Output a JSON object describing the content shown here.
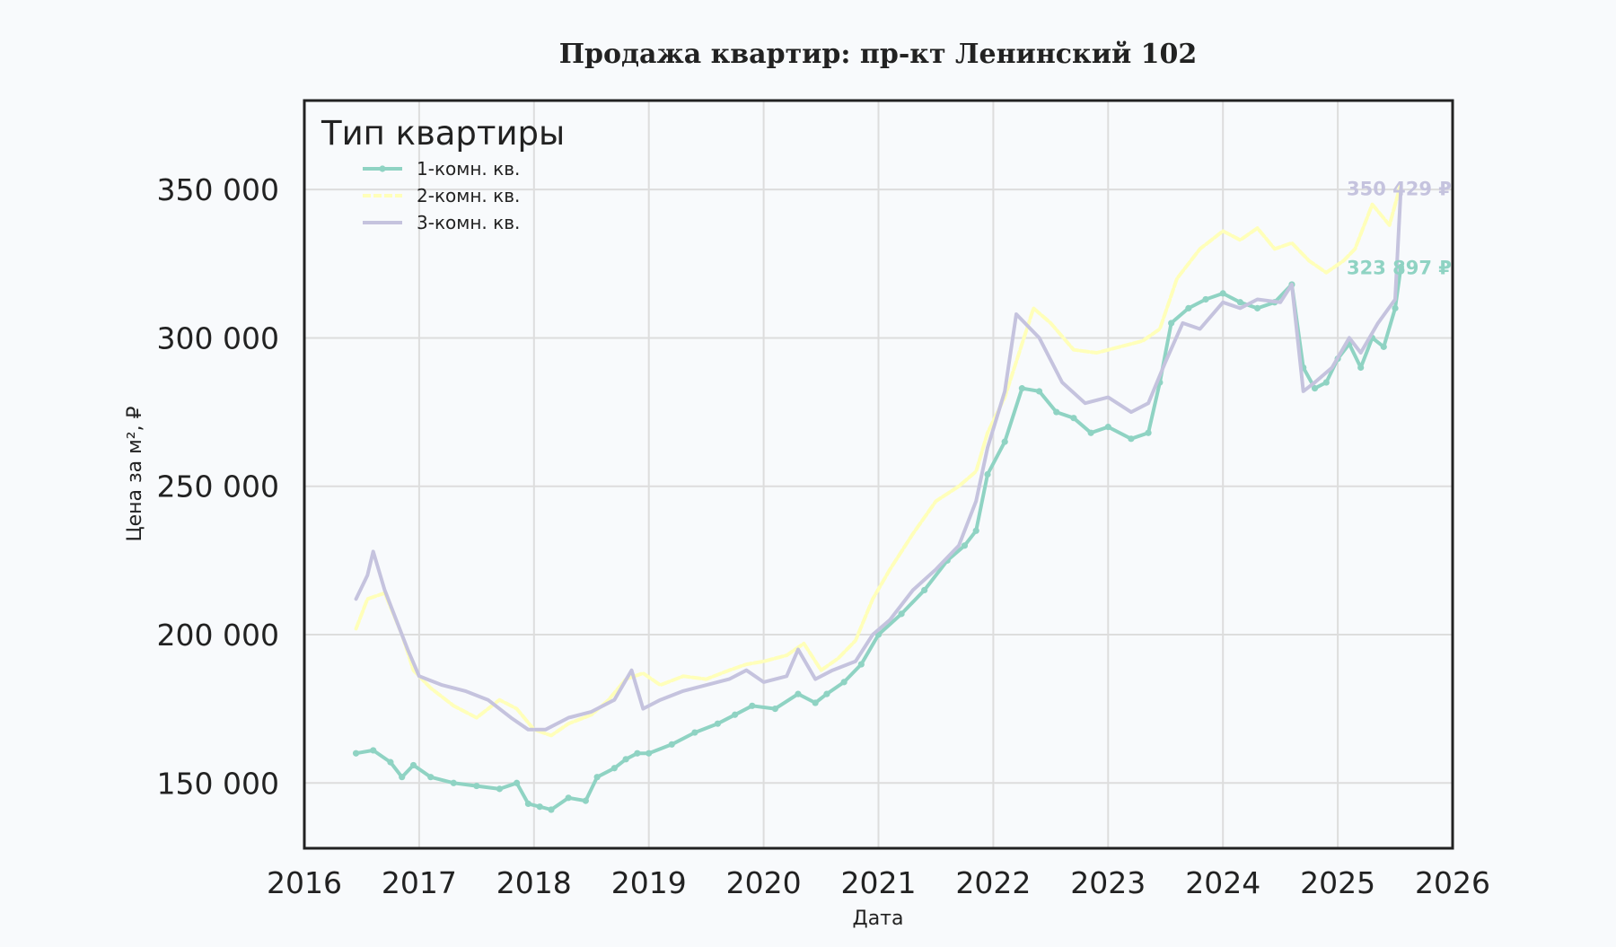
{
  "chart_data": {
    "type": "line",
    "title": "Продажа квартир: пр-кт Ленинский 102",
    "xlabel": "Дата",
    "ylabel": "Цена за м², ₽",
    "xlim": [
      2016,
      2026
    ],
    "ylim": [
      128000,
      380000
    ],
    "x_ticks": [
      "2016",
      "2017",
      "2018",
      "2019",
      "2020",
      "2021",
      "2022",
      "2023",
      "2024",
      "2025",
      "2026"
    ],
    "y_ticks": [
      150000,
      200000,
      250000,
      300000,
      350000
    ],
    "y_tick_labels": [
      "150 000",
      "200 000",
      "250 000",
      "300 000",
      "350 000"
    ],
    "grid": true,
    "legend": {
      "title": "Тип квартиры",
      "placement": "top-left"
    },
    "end_labels": [
      {
        "text": "350 429 ₽",
        "series": "3-комн. кв.",
        "value": 350429
      },
      {
        "text": "323 897 ₽",
        "series": "1-комн. кв.",
        "value": 323897
      }
    ],
    "series": [
      {
        "name": "1-комн. кв.",
        "color": "#8fd3c3",
        "marker": "dot",
        "x": [
          2016.45,
          2016.6,
          2016.75,
          2016.85,
          2016.95,
          2017.1,
          2017.3,
          2017.5,
          2017.7,
          2017.85,
          2017.95,
          2018.05,
          2018.15,
          2018.3,
          2018.45,
          2018.55,
          2018.7,
          2018.8,
          2018.9,
          2019.0,
          2019.2,
          2019.4,
          2019.6,
          2019.75,
          2019.9,
          2020.1,
          2020.3,
          2020.45,
          2020.55,
          2020.7,
          2020.85,
          2021.0,
          2021.2,
          2021.4,
          2021.6,
          2021.75,
          2021.85,
          2021.95,
          2022.1,
          2022.25,
          2022.4,
          2022.55,
          2022.7,
          2022.85,
          2023.0,
          2023.2,
          2023.35,
          2023.45,
          2023.55,
          2023.7,
          2023.85,
          2024.0,
          2024.15,
          2024.3,
          2024.45,
          2024.6,
          2024.7,
          2024.8,
          2024.9,
          2025.0,
          2025.1,
          2025.2,
          2025.3,
          2025.4,
          2025.5,
          2025.55
        ],
        "values": [
          160000,
          161000,
          157000,
          152000,
          156000,
          152000,
          150000,
          149000,
          148000,
          150000,
          143000,
          142000,
          141000,
          145000,
          144000,
          152000,
          155000,
          158000,
          160000,
          160000,
          163000,
          167000,
          170000,
          173000,
          176000,
          175000,
          180000,
          177000,
          180000,
          184000,
          190000,
          200000,
          207000,
          215000,
          225000,
          230000,
          235000,
          254000,
          265000,
          283000,
          282000,
          275000,
          273000,
          268000,
          270000,
          266000,
          268000,
          285000,
          305000,
          310000,
          313000,
          315000,
          312000,
          310000,
          312000,
          318000,
          290000,
          283000,
          285000,
          293000,
          298000,
          290000,
          300000,
          297000,
          310000,
          323897
        ]
      },
      {
        "name": "2-комн. кв.",
        "color": "#ffffba",
        "marker": "dash",
        "x": [
          2016.45,
          2016.55,
          2016.7,
          2016.85,
          2016.95,
          2017.1,
          2017.3,
          2017.5,
          2017.7,
          2017.85,
          2018.0,
          2018.15,
          2018.3,
          2018.5,
          2018.65,
          2018.8,
          2018.95,
          2019.1,
          2019.3,
          2019.5,
          2019.7,
          2019.85,
          2020.0,
          2020.2,
          2020.35,
          2020.5,
          2020.65,
          2020.8,
          2020.95,
          2021.1,
          2021.3,
          2021.5,
          2021.7,
          2021.85,
          2021.95,
          2022.1,
          2022.2,
          2022.35,
          2022.5,
          2022.7,
          2022.9,
          2023.1,
          2023.3,
          2023.45,
          2023.6,
          2023.8,
          2024.0,
          2024.15,
          2024.3,
          2024.45,
          2024.6,
          2024.75,
          2024.9,
          2025.05,
          2025.15,
          2025.3,
          2025.45,
          2025.55
        ],
        "values": [
          202000,
          212000,
          214000,
          200000,
          188000,
          182000,
          176000,
          172000,
          178000,
          175000,
          168000,
          166000,
          170000,
          173000,
          178000,
          185000,
          187000,
          183000,
          186000,
          185000,
          188000,
          190000,
          191000,
          193000,
          197000,
          188000,
          192000,
          198000,
          212000,
          222000,
          234000,
          245000,
          250000,
          255000,
          268000,
          280000,
          292000,
          310000,
          305000,
          296000,
          295000,
          297000,
          299000,
          303000,
          320000,
          330000,
          336000,
          333000,
          337000,
          330000,
          332000,
          326000,
          322000,
          326000,
          330000,
          345000,
          338000,
          352000
        ]
      },
      {
        "name": "3-комн. кв.",
        "color": "#c5c3de",
        "marker": "none",
        "x": [
          2016.45,
          2016.55,
          2016.6,
          2016.7,
          2016.8,
          2016.9,
          2017.0,
          2017.2,
          2017.4,
          2017.6,
          2017.8,
          2017.95,
          2018.1,
          2018.3,
          2018.5,
          2018.7,
          2018.85,
          2018.95,
          2019.1,
          2019.3,
          2019.5,
          2019.7,
          2019.85,
          2020.0,
          2020.2,
          2020.3,
          2020.45,
          2020.6,
          2020.8,
          2020.95,
          2021.1,
          2021.3,
          2021.5,
          2021.7,
          2021.85,
          2021.95,
          2022.1,
          2022.2,
          2022.4,
          2022.6,
          2022.8,
          2023.0,
          2023.2,
          2023.35,
          2023.5,
          2023.65,
          2023.8,
          2024.0,
          2024.15,
          2024.3,
          2024.5,
          2024.6,
          2024.7,
          2024.8,
          2024.95,
          2025.1,
          2025.2,
          2025.35,
          2025.5,
          2025.55
        ],
        "values": [
          212000,
          220000,
          228000,
          215000,
          205000,
          195000,
          186000,
          183000,
          181000,
          178000,
          172000,
          168000,
          168000,
          172000,
          174000,
          178000,
          188000,
          175000,
          178000,
          181000,
          183000,
          185000,
          188000,
          184000,
          186000,
          195000,
          185000,
          188000,
          191000,
          200000,
          205000,
          215000,
          222000,
          230000,
          245000,
          263000,
          282000,
          308000,
          300000,
          285000,
          278000,
          280000,
          275000,
          278000,
          292000,
          305000,
          303000,
          312000,
          310000,
          313000,
          312000,
          318000,
          282000,
          285000,
          290000,
          300000,
          295000,
          305000,
          313000,
          350429
        ]
      }
    ]
  }
}
